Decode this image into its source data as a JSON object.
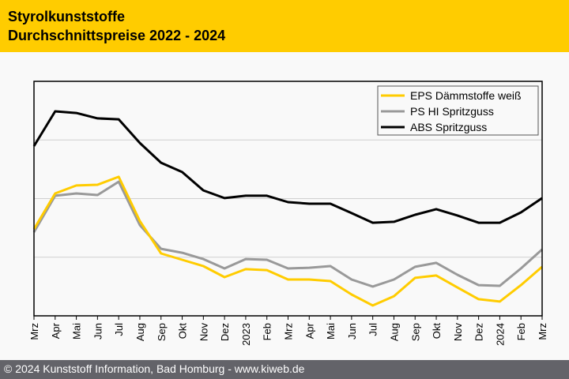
{
  "header": {
    "title_line1": "Styrolkunststoffe",
    "title_line2": "Durchschnittspreise 2022 - 2024"
  },
  "footer": {
    "text": "© 2024 Kunststoff Information, Bad Homburg - www.kiweb.de"
  },
  "colors": {
    "header_bg": "#ffcc00",
    "footer_bg": "#636369",
    "eps": "#ffcc00",
    "ps": "#999999",
    "abs": "#000000",
    "grid": "#d0d0d0"
  },
  "chart_data": {
    "type": "line",
    "title": "Styrolkunststoffe Durchschnittspreise 2022 - 2024",
    "xlabel": "",
    "ylabel": "",
    "y_axis_note": "no y-axis labels shown; values on relative 0-100 scale",
    "ylim": [
      0,
      100
    ],
    "y_gridlines": [
      25,
      50,
      75
    ],
    "grid": true,
    "legend_position": "top-right",
    "categories": [
      "Mrz",
      "Apr",
      "Mai",
      "Jun",
      "Jul",
      "Aug",
      "Sep",
      "Okt",
      "Nov",
      "Dez",
      "2023",
      "Feb",
      "Mrz",
      "Apr",
      "Mai",
      "Jun",
      "Jul",
      "Aug",
      "Sep",
      "Okt",
      "Nov",
      "Dez",
      "2024",
      "Feb",
      "Mrz"
    ],
    "series": [
      {
        "name": "EPS Dämmstoffe weiß",
        "color": "#ffcc00",
        "values": [
          37.0,
          52.2,
          55.6,
          55.9,
          59.3,
          40.4,
          26.6,
          23.9,
          21.2,
          16.5,
          19.9,
          19.5,
          15.5,
          15.5,
          14.8,
          9.1,
          4.4,
          8.4,
          16.2,
          17.2,
          12.1,
          7.1,
          6.1,
          13.1,
          20.9
        ]
      },
      {
        "name": "PS HI Spritzguss",
        "color": "#999999",
        "values": [
          35.7,
          51.2,
          52.2,
          51.5,
          57.2,
          38.7,
          28.6,
          26.9,
          24.2,
          20.2,
          24.2,
          23.9,
          20.2,
          20.5,
          21.2,
          15.5,
          12.5,
          15.5,
          20.9,
          22.6,
          17.5,
          13.1,
          12.8,
          20.2,
          28.3
        ]
      },
      {
        "name": "ABS Spritzguss",
        "color": "#000000",
        "values": [
          72.4,
          87.2,
          86.5,
          84.2,
          83.8,
          73.7,
          65.3,
          61.3,
          53.5,
          50.2,
          51.2,
          51.2,
          48.5,
          47.8,
          47.8,
          43.8,
          39.7,
          40.1,
          43.1,
          45.5,
          42.8,
          39.7,
          39.7,
          44.1,
          50.2
        ]
      }
    ]
  }
}
